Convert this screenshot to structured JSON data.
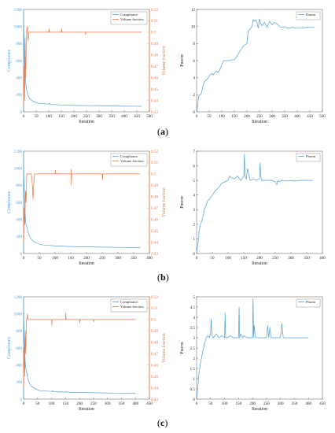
{
  "colors": {
    "compliance": "#4f9fd6",
    "volume": "#e8774a",
    "pnorm": "#4f9fd6",
    "axis": "#222222"
  },
  "panel_labels": [
    "a",
    "b",
    "c"
  ],
  "chart_data": [
    {
      "panel": "a",
      "side": "left",
      "type": "line",
      "xlabel": "Iteration",
      "ylabel": "Compliance",
      "y2label": "Volume fraction",
      "xlim": [
        0,
        500
      ],
      "ylim": [
        0,
        1200
      ],
      "y2lim": [
        0.43,
        0.52
      ],
      "xticks": [
        0,
        50,
        100,
        150,
        200,
        250,
        300,
        350,
        400,
        450,
        500
      ],
      "yticks": [
        0,
        200,
        400,
        600,
        800,
        1000,
        1200
      ],
      "y2ticks": [
        0.43,
        0.44,
        0.45,
        0.46,
        0.47,
        0.48,
        0.49,
        0.5,
        0.51,
        0.52
      ],
      "legend": "top-right",
      "series": [
        {
          "name": "Compliance",
          "axis": "left",
          "x": [
            0,
            2,
            4,
            6,
            8,
            10,
            14,
            18,
            22,
            26,
            30,
            40,
            50,
            60,
            80,
            100,
            104,
            106,
            120,
            150,
            200,
            250,
            300,
            350,
            400,
            450,
            470
          ],
          "y": [
            1030,
            820,
            560,
            430,
            360,
            300,
            230,
            190,
            165,
            150,
            140,
            120,
            108,
            100,
            95,
            90,
            100,
            88,
            85,
            80,
            75,
            72,
            70,
            68,
            66,
            65,
            64
          ]
        },
        {
          "name": "Volume fraction",
          "axis": "right",
          "x": [
            0,
            2,
            4,
            6,
            8,
            10,
            12,
            14,
            16,
            18,
            20,
            25,
            30,
            40,
            60,
            100,
            101,
            102,
            150,
            151,
            152,
            245,
            246,
            247,
            300,
            400,
            470
          ],
          "y": [
            0.435,
            0.47,
            0.44,
            0.495,
            0.46,
            0.48,
            0.5,
            0.505,
            0.498,
            0.492,
            0.5,
            0.5,
            0.5,
            0.5,
            0.5,
            0.5,
            0.503,
            0.5,
            0.5,
            0.503,
            0.5,
            0.5,
            0.498,
            0.5,
            0.5,
            0.5,
            0.5
          ]
        }
      ]
    },
    {
      "panel": "a",
      "side": "right",
      "type": "line",
      "xlabel": "Iteration",
      "ylabel": "Pnorm",
      "xlim": [
        0,
        500
      ],
      "ylim": [
        0,
        12
      ],
      "xticks": [
        0,
        50,
        100,
        150,
        200,
        250,
        300,
        350,
        400,
        450,
        500
      ],
      "yticks": [
        0,
        2,
        4,
        6,
        8,
        10,
        12
      ],
      "legend": "top-right",
      "series": [
        {
          "name": "Pnorm",
          "x": [
            0,
            3,
            6,
            8,
            12,
            16,
            20,
            25,
            30,
            40,
            45,
            50,
            60,
            65,
            70,
            80,
            85,
            90,
            100,
            105,
            110,
            120,
            130,
            140,
            150,
            160,
            170,
            180,
            190,
            200,
            205,
            210,
            220,
            225,
            230,
            235,
            240,
            245,
            250,
            255,
            260,
            270,
            280,
            290,
            300,
            310,
            320,
            330,
            340,
            350,
            360,
            380,
            400,
            420,
            440,
            460,
            470
          ],
          "y": [
            0,
            0.5,
            1.2,
            1.8,
            2.0,
            2.0,
            2.3,
            3.0,
            3.5,
            3.8,
            3.9,
            4.2,
            4.5,
            4.3,
            4.5,
            4.8,
            4.6,
            4.8,
            5.5,
            5.9,
            6.0,
            6.0,
            6.0,
            6.1,
            6.1,
            6.5,
            7.0,
            7.5,
            7.8,
            8.0,
            9.5,
            9.6,
            10.0,
            10.8,
            10.6,
            10.8,
            10.4,
            9.8,
            10.9,
            10.3,
            10.1,
            10.5,
            9.9,
            10.6,
            10.2,
            10.5,
            10.3,
            10.0,
            9.9,
            10.0,
            9.8,
            9.9,
            9.8,
            9.8,
            9.9,
            9.9,
            9.9
          ]
        }
      ]
    },
    {
      "panel": "b",
      "side": "left",
      "type": "line",
      "xlabel": "Iteration",
      "ylabel": "Compliance",
      "y2label": "Volume fraction",
      "xlim": [
        0,
        400
      ],
      "ylim": [
        0,
        1200
      ],
      "y2lim": [
        0.43,
        0.52
      ],
      "xticks": [
        0,
        50,
        100,
        150,
        200,
        250,
        300,
        350,
        400
      ],
      "yticks": [
        0,
        200,
        400,
        600,
        800,
        1000,
        1200
      ],
      "y2ticks": [
        0.43,
        0.44,
        0.45,
        0.46,
        0.47,
        0.48,
        0.49,
        0.5,
        0.51,
        0.52
      ],
      "legend": "top-right",
      "series": [
        {
          "name": "Compliance",
          "axis": "left",
          "x": [
            0,
            2,
            4,
            6,
            8,
            10,
            14,
            18,
            22,
            26,
            30,
            40,
            50,
            60,
            80,
            100,
            150,
            200,
            250,
            300,
            350,
            370
          ],
          "y": [
            1000,
            760,
            520,
            400,
            330,
            320,
            250,
            210,
            180,
            160,
            145,
            125,
            110,
            102,
            95,
            90,
            82,
            78,
            75,
            72,
            70,
            68
          ]
        },
        {
          "name": "Volume fraction",
          "axis": "right",
          "x": [
            0,
            2,
            4,
            6,
            8,
            10,
            12,
            14,
            16,
            18,
            20,
            25,
            28,
            30,
            32,
            35,
            40,
            60,
            80,
            100,
            101,
            102,
            150,
            151,
            152,
            153,
            250,
            251,
            252,
            300,
            370
          ],
          "y": [
            0.44,
            0.47,
            0.455,
            0.485,
            0.475,
            0.5,
            0.5,
            0.5,
            0.5,
            0.5,
            0.5,
            0.5,
            0.49,
            0.478,
            0.49,
            0.5,
            0.5,
            0.5,
            0.5,
            0.5,
            0.503,
            0.5,
            0.5,
            0.504,
            0.49,
            0.5,
            0.5,
            0.495,
            0.5,
            0.5,
            0.5
          ]
        }
      ]
    },
    {
      "panel": "b",
      "side": "right",
      "type": "line",
      "xlabel": "Iteration",
      "ylabel": "Pnorm",
      "xlim": [
        0,
        400
      ],
      "ylim": [
        0,
        7
      ],
      "xticks": [
        0,
        50,
        100,
        150,
        200,
        250,
        300,
        350,
        400
      ],
      "yticks": [
        0,
        1,
        2,
        3,
        4,
        5,
        6,
        7
      ],
      "legend": "top-right",
      "series": [
        {
          "name": "Pnorm",
          "x": [
            0,
            3,
            6,
            8,
            12,
            16,
            20,
            25,
            30,
            35,
            40,
            50,
            60,
            70,
            80,
            90,
            100,
            105,
            110,
            120,
            130,
            140,
            150,
            152,
            154,
            158,
            162,
            170,
            180,
            190,
            200,
            202,
            204,
            206,
            210,
            220,
            240,
            250,
            255,
            258,
            262,
            270,
            290,
            300,
            310,
            330,
            350,
            370
          ],
          "y": [
            0.1,
            0.5,
            1.0,
            1.5,
            2.0,
            2.2,
            2.5,
            3.0,
            3.3,
            3.6,
            3.7,
            4.0,
            4.3,
            4.5,
            4.8,
            4.9,
            5.0,
            5.3,
            5.2,
            5.1,
            5.3,
            5.0,
            5.3,
            6.8,
            5.3,
            5.1,
            5.8,
            5.0,
            5.1,
            5.0,
            5.1,
            6.2,
            5.3,
            5.0,
            5.0,
            5.0,
            5.0,
            4.9,
            4.7,
            5.0,
            4.9,
            5.0,
            4.95,
            5.0,
            4.95,
            5.0,
            5.0,
            5.0
          ]
        }
      ]
    },
    {
      "panel": "c",
      "side": "left",
      "type": "line",
      "xlabel": "Iteration",
      "ylabel": "Compliance",
      "y2label": "Volume fraction",
      "xlim": [
        0,
        450
      ],
      "ylim": [
        0,
        1200
      ],
      "y2lim": [
        0.43,
        0.52
      ],
      "xticks": [
        0,
        50,
        100,
        150,
        200,
        250,
        300,
        350,
        400,
        450
      ],
      "yticks": [
        0,
        200,
        400,
        600,
        800,
        1000,
        1200
      ],
      "y2ticks": [
        0.43,
        0.44,
        0.45,
        0.46,
        0.47,
        0.48,
        0.49,
        0.5,
        0.51,
        0.52
      ],
      "legend": "top-right",
      "series": [
        {
          "name": "Compliance",
          "axis": "left",
          "x": [
            0,
            2,
            4,
            6,
            8,
            10,
            14,
            18,
            22,
            26,
            30,
            40,
            50,
            60,
            80,
            100,
            104,
            106,
            150,
            154,
            156,
            200,
            250,
            300,
            350,
            400
          ],
          "y": [
            1000,
            770,
            560,
            430,
            360,
            340,
            260,
            210,
            180,
            160,
            145,
            125,
            110,
            100,
            95,
            90,
            100,
            88,
            82,
            92,
            82,
            78,
            75,
            72,
            70,
            68
          ]
        },
        {
          "name": "Volume fraction",
          "axis": "right",
          "x": [
            0,
            2,
            4,
            6,
            8,
            10,
            12,
            14,
            16,
            18,
            20,
            25,
            30,
            40,
            60,
            100,
            101,
            102,
            150,
            151,
            152,
            200,
            201,
            202,
            250,
            251,
            252,
            300,
            400
          ],
          "y": [
            0.44,
            0.475,
            0.45,
            0.49,
            0.47,
            0.5,
            0.5,
            0.505,
            0.5,
            0.5,
            0.5,
            0.5,
            0.5,
            0.5,
            0.5,
            0.5,
            0.495,
            0.5,
            0.5,
            0.506,
            0.5,
            0.5,
            0.497,
            0.5,
            0.5,
            0.498,
            0.5,
            0.5,
            0.5
          ]
        }
      ]
    },
    {
      "panel": "c",
      "side": "right",
      "type": "line",
      "xlabel": "Iteration",
      "ylabel": "Pnorm",
      "xlim": [
        0,
        450
      ],
      "ylim": [
        0,
        5
      ],
      "xticks": [
        0,
        50,
        100,
        150,
        200,
        250,
        300,
        350,
        400,
        450
      ],
      "yticks": [
        0,
        0.5,
        1,
        1.5,
        2,
        2.5,
        3,
        3.5,
        4,
        4.5,
        5
      ],
      "legend": "top-right",
      "series": [
        {
          "name": "Pnorm",
          "x": [
            0,
            3,
            6,
            8,
            12,
            16,
            20,
            25,
            30,
            35,
            40,
            45,
            50,
            52,
            55,
            60,
            70,
            80,
            90,
            100,
            102,
            104,
            110,
            120,
            130,
            140,
            150,
            152,
            154,
            158,
            165,
            170,
            180,
            190,
            200,
            202,
            204,
            206,
            210,
            220,
            230,
            240,
            250,
            254,
            258,
            262,
            266,
            270,
            280,
            290,
            300,
            305,
            310,
            320,
            330,
            340,
            350,
            370,
            400
          ],
          "y": [
            0,
            0.4,
            0.8,
            1.2,
            1.6,
            1.9,
            2.2,
            2.5,
            2.8,
            3.0,
            3.1,
            3.0,
            3.2,
            3.9,
            3.1,
            3.0,
            3.2,
            3.0,
            3.1,
            3.0,
            4.2,
            3.0,
            3.0,
            3.1,
            3.0,
            3.0,
            3.0,
            4.5,
            3.0,
            3.2,
            3.0,
            3.1,
            3.0,
            3.0,
            3.0,
            4.9,
            3.0,
            3.6,
            3.0,
            3.0,
            3.0,
            3.0,
            3.0,
            3.6,
            3.0,
            3.5,
            3.0,
            3.0,
            3.0,
            3.0,
            3.0,
            3.7,
            3.0,
            3.0,
            3.0,
            3.0,
            3.0,
            3.0,
            3.0
          ]
        }
      ]
    }
  ]
}
